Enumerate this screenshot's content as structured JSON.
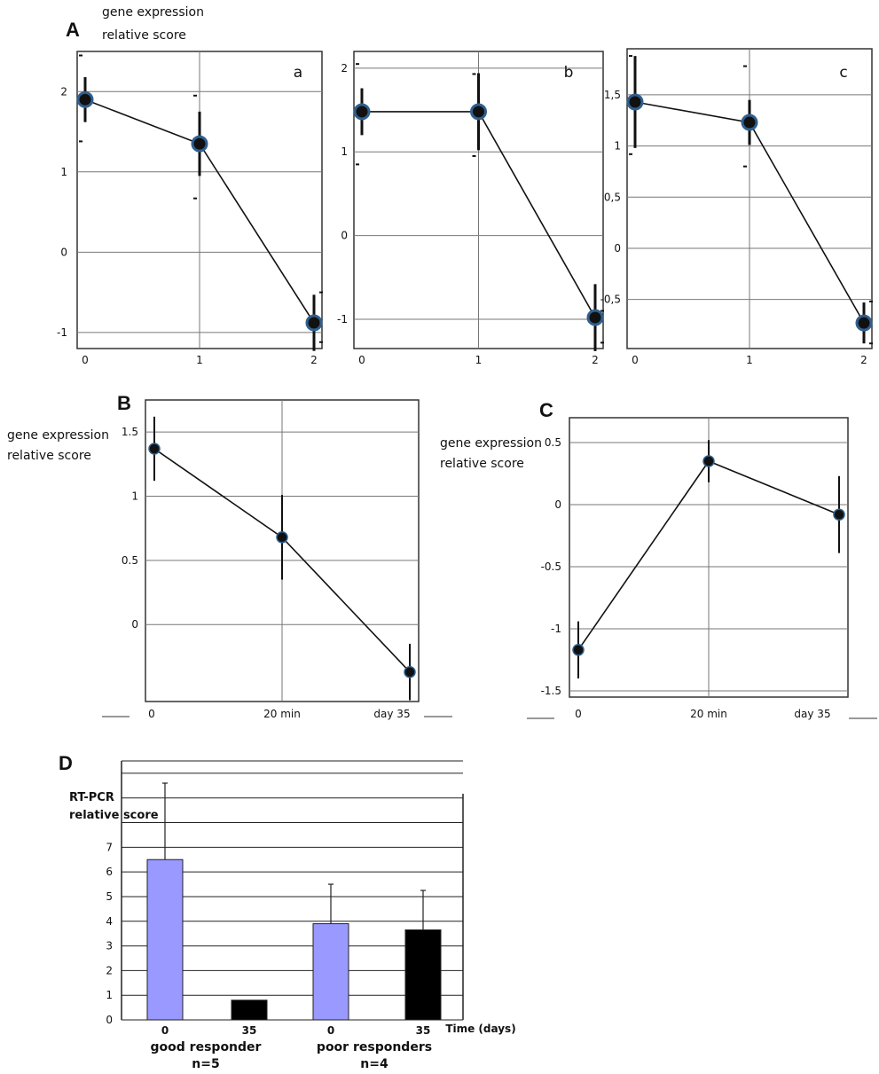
{
  "panels": {
    "A": "A",
    "B": "B",
    "C": "C",
    "D": "D"
  },
  "labels": {
    "gene_expression_line1": "gene expression",
    "gene_expression_line2": "relative score",
    "rtpcr_line1": "RT-PCR",
    "rtpcr_line2": "relative score",
    "time_days": "Time (days)",
    "good_responder": "good responder",
    "good_n": "n=5",
    "poor_responders": "poor responders",
    "poor_n": "n=4"
  },
  "chart_data": [
    {
      "id": "A-a",
      "type": "line",
      "subtitle": "a",
      "x": [
        0,
        1,
        2
      ],
      "x_tick_labels": [
        "0",
        "1",
        "2"
      ],
      "y": [
        1.9,
        1.35,
        -0.88
      ],
      "err": [
        0.28,
        0.4,
        0.35
      ],
      "err_caps_outer": [
        [
          1.38,
          2.45
        ],
        [
          0.67,
          1.95
        ],
        [
          -1.12,
          -0.5
        ]
      ],
      "ylim": [
        -1.2,
        2.5
      ],
      "y_ticks": [
        -1,
        0,
        1,
        2
      ],
      "y_tick_labels": [
        "-1",
        "0",
        "1",
        "2"
      ],
      "xlim": [
        -0.05,
        2.05
      ],
      "grid": true
    },
    {
      "id": "A-b",
      "type": "line",
      "subtitle": "b",
      "x": [
        0,
        1,
        2
      ],
      "x_tick_labels": [
        "0",
        "1",
        "2"
      ],
      "y": [
        1.48,
        1.48,
        -0.98
      ],
      "err": [
        0.28,
        0.46,
        0.4
      ],
      "err_caps_outer": [
        [
          0.85,
          2.05
        ],
        [
          0.95,
          1.93
        ],
        [
          -1.28,
          -0.9
        ]
      ],
      "ylim": [
        -1.35,
        2.2
      ],
      "y_ticks": [
        -1,
        0,
        1,
        2
      ],
      "y_tick_labels": [
        "-1",
        "0",
        "1",
        "2"
      ],
      "xlim": [
        -0.05,
        2.05
      ],
      "grid": true
    },
    {
      "id": "A-c",
      "type": "line",
      "subtitle": "c",
      "x": [
        0,
        1,
        2
      ],
      "x_tick_labels": [
        "0",
        "1",
        "2"
      ],
      "y": [
        1.43,
        1.23,
        -0.73
      ],
      "err": [
        0.45,
        0.22,
        0.2
      ],
      "err_caps_outer": [
        [
          0.92,
          1.88
        ],
        [
          0.8,
          1.78
        ],
        [
          -0.93,
          -0.52
        ]
      ],
      "ylim": [
        -0.98,
        1.95
      ],
      "y_ticks": [
        -0.5,
        0,
        0.5,
        1,
        1.5
      ],
      "y_tick_labels": [
        "-0,5",
        "0",
        "0,5",
        "1",
        "1,5"
      ],
      "xlim": [
        -0.05,
        2.05
      ],
      "grid": true
    },
    {
      "id": "B",
      "type": "line",
      "x": [
        0,
        1,
        2
      ],
      "x_tick_labels": [
        "0",
        "20 min",
        "day 35"
      ],
      "y": [
        1.37,
        0.68,
        -0.37
      ],
      "err": [
        0.25,
        0.33,
        0.22
      ],
      "ylim": [
        -0.6,
        1.75
      ],
      "y_ticks": [
        0,
        0.5,
        1,
        1.5
      ],
      "y_tick_labels": [
        "0",
        "0.5",
        "1",
        "1.5"
      ],
      "xlim": [
        -0.05,
        2.05
      ],
      "grid": true
    },
    {
      "id": "C",
      "type": "line",
      "x": [
        0,
        1,
        2
      ],
      "x_tick_labels": [
        "0",
        "20 min",
        "day 35"
      ],
      "y": [
        -1.17,
        0.35,
        -0.08
      ],
      "err": [
        0.23,
        0.17,
        0.31
      ],
      "ylim": [
        -1.55,
        0.7
      ],
      "y_ticks": [
        -1.5,
        -1,
        -0.5,
        0,
        0.5
      ],
      "y_tick_labels": [
        "-1.5",
        "-1",
        "-0.5",
        "0",
        "0.5"
      ],
      "xlim": [
        -0.05,
        2.05
      ],
      "grid": true
    },
    {
      "id": "D",
      "type": "bar",
      "categories": [
        "0",
        "35",
        "0",
        "35"
      ],
      "groups": [
        "good responder",
        "poor responders"
      ],
      "series": [
        {
          "values": [
            6.5,
            0.8,
            3.9,
            3.65
          ],
          "errors": [
            3.1,
            0,
            1.6,
            1.6
          ]
        }
      ],
      "bar_colors": [
        "#9999ff",
        "#000000",
        "#9999ff",
        "#000000"
      ],
      "ylim": [
        0,
        10.5
      ],
      "y_ticks": [
        0,
        1,
        2,
        3,
        4,
        5,
        6,
        7
      ],
      "y_tick_labels": [
        "0",
        "1",
        "2",
        "3",
        "4",
        "5",
        "6",
        "7"
      ],
      "grid": true
    }
  ]
}
